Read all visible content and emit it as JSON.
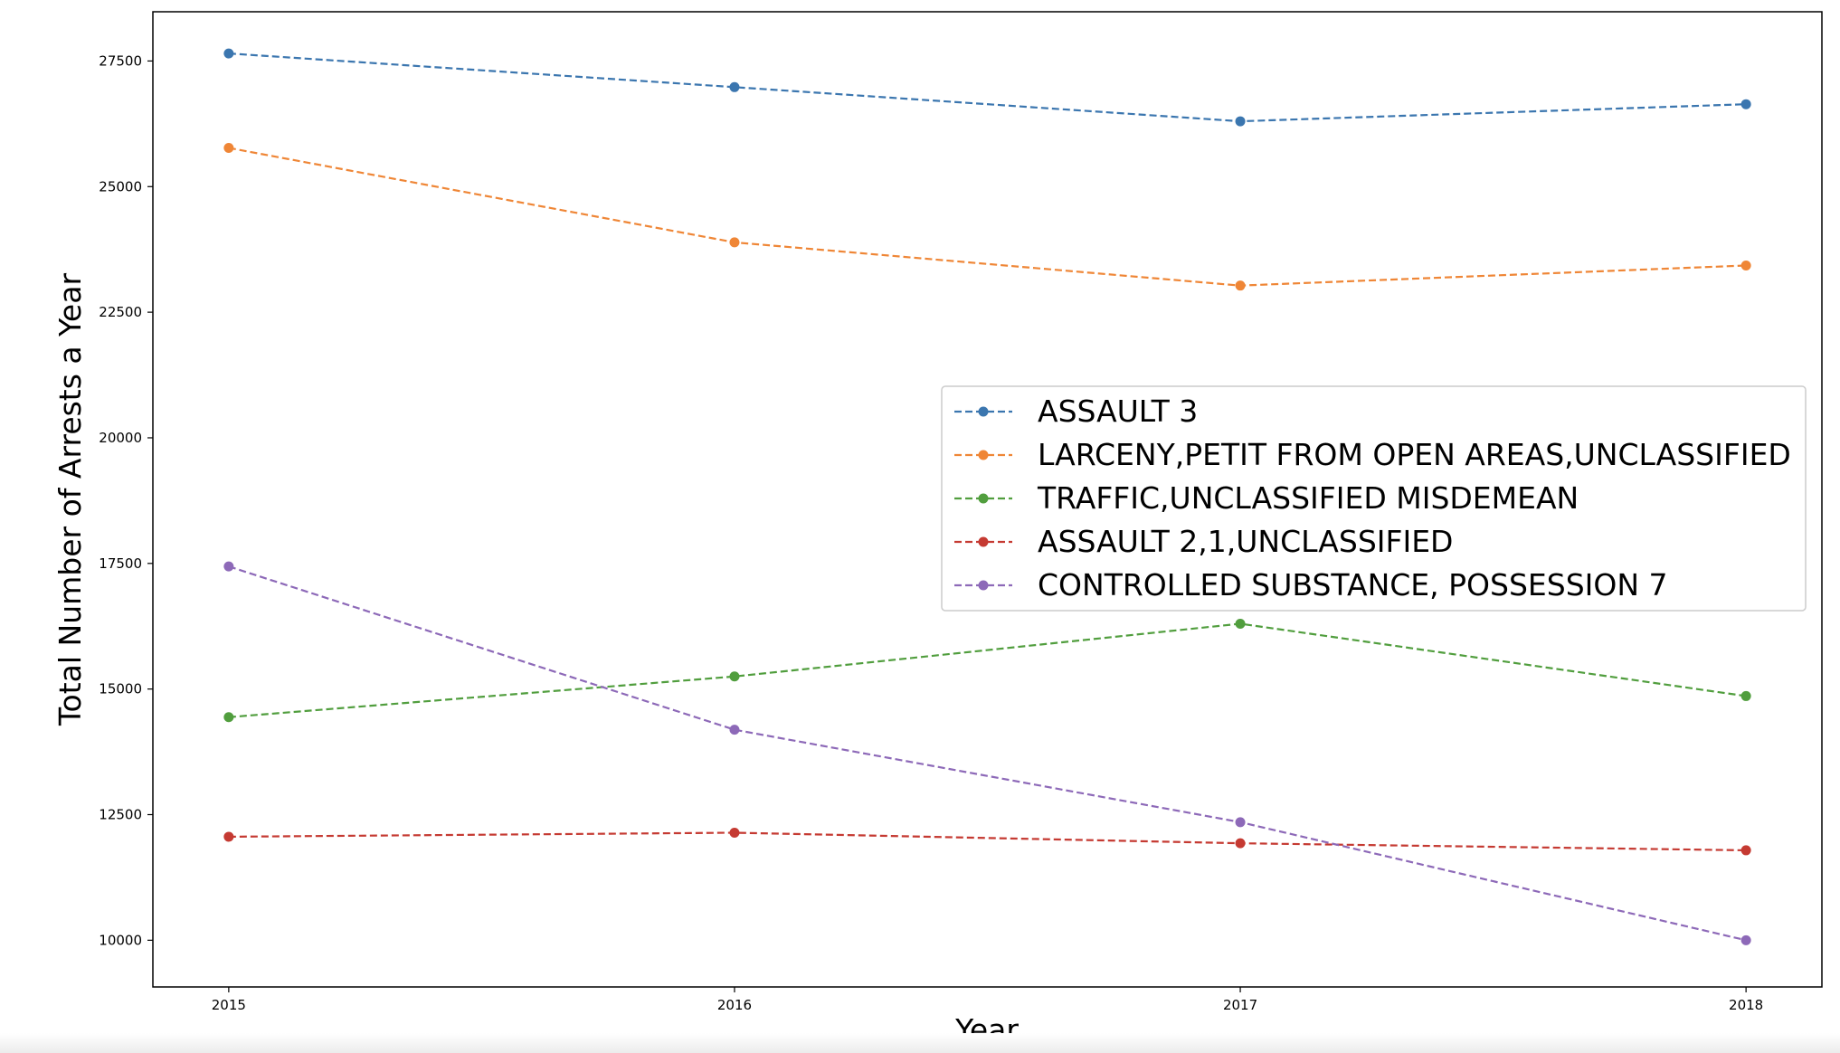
{
  "chart_data": {
    "type": "line",
    "title": "",
    "xlabel": "Year",
    "ylabel": "Total Number of Arrests a Year",
    "x": [
      2015,
      2016,
      2017,
      2018
    ],
    "x_tick_labels": [
      "2015",
      "2016",
      "2017",
      "2018"
    ],
    "xlim": [
      2014.85,
      2018.15
    ],
    "ylim": [
      9070,
      28480
    ],
    "y_ticks": [
      10000,
      12500,
      15000,
      17500,
      20000,
      22500,
      25000,
      27500
    ],
    "y_tick_labels": [
      "10000",
      "12500",
      "15000",
      "17500",
      "20000",
      "22500",
      "25000",
      "27500"
    ],
    "grid": false,
    "line_style": "dashed",
    "marker": "circle",
    "legend_position": "right",
    "series": [
      {
        "name": "ASSAULT 3",
        "color": "#3b76af",
        "values": [
          27650,
          26980,
          26300,
          26640
        ]
      },
      {
        "name": "LARCENY,PETIT FROM OPEN AREAS,UNCLASSIFIED",
        "color": "#ef8636",
        "values": [
          25770,
          23890,
          23030,
          23430
        ]
      },
      {
        "name": "TRAFFIC,UNCLASSIFIED MISDEMEAN",
        "color": "#519e3e",
        "values": [
          14440,
          15250,
          16300,
          14860
        ]
      },
      {
        "name": "ASSAULT 2,1,UNCLASSIFIED",
        "color": "#c53a32",
        "values": [
          12060,
          12140,
          11930,
          11790
        ]
      },
      {
        "name": "CONTROLLED SUBSTANCE, POSSESSION 7",
        "color": "#8d69b8",
        "values": [
          17440,
          14190,
          12350,
          10000
        ]
      }
    ]
  }
}
